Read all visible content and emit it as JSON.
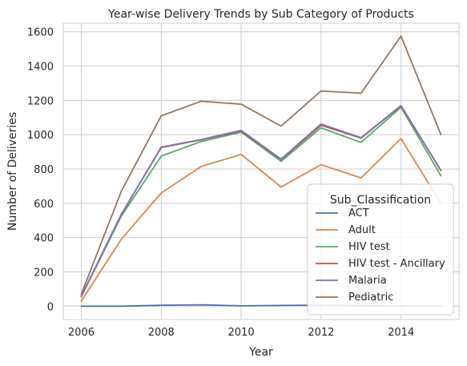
{
  "chart_data": {
    "type": "line",
    "title": "Year-wise Delivery Trends by Sub Category of Products",
    "xlabel": "Year",
    "ylabel": "Number of Deliveries",
    "x": [
      2006,
      2007,
      2008,
      2009,
      2010,
      2011,
      2012,
      2013,
      2014,
      2015
    ],
    "xticks": [
      2006,
      2008,
      2010,
      2012,
      2014
    ],
    "yticks": [
      0,
      200,
      400,
      600,
      800,
      1000,
      1200,
      1400,
      1600
    ],
    "xlim": [
      2005.55,
      2015.45
    ],
    "ylim": [
      -78,
      1650
    ],
    "grid": true,
    "legend": {
      "title": "Sub_Classification",
      "placement": "lower right"
    },
    "series": [
      {
        "name": "ACT",
        "color": "#4c72b0",
        "values": [
          0,
          0,
          5,
          8,
          2,
          4,
          6,
          3,
          2,
          2
        ]
      },
      {
        "name": "Adult",
        "color": "#dd8452",
        "values": [
          30,
          390,
          660,
          815,
          885,
          695,
          825,
          748,
          977,
          600
        ]
      },
      {
        "name": "HIV test",
        "color": "#55a868",
        "values": [
          55,
          525,
          875,
          960,
          1015,
          845,
          1040,
          955,
          1160,
          760
        ]
      },
      {
        "name": "HIV test - Ancillary",
        "color": "#c44e52",
        "values": [
          58,
          535,
          925,
          970,
          1022,
          855,
          1055,
          980,
          1168,
          790
        ]
      },
      {
        "name": "Malaria",
        "color": "#8172b3",
        "values": [
          58,
          535,
          928,
          972,
          1025,
          858,
          1062,
          982,
          1170,
          792
        ]
      },
      {
        "name": "Pediatric",
        "color": "#937860",
        "values": [
          70,
          670,
          1110,
          1195,
          1178,
          1050,
          1255,
          1242,
          1575,
          1000
        ]
      }
    ]
  }
}
